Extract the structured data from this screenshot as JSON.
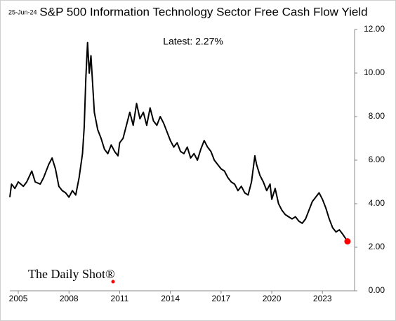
{
  "chart_data": {
    "type": "line",
    "date": "25-Jun-24",
    "title": "S&P 500 Information Technology Sector Free Cash Flow Yield",
    "annotation": "Latest:  2.27%",
    "watermark": "The Daily Shot®",
    "x": [
      2004.5,
      2004.6,
      2004.8,
      2005.0,
      2005.3,
      2005.5,
      2005.8,
      2006.0,
      2006.3,
      2006.5,
      2006.8,
      2007.0,
      2007.2,
      2007.4,
      2007.6,
      2007.8,
      2008.0,
      2008.2,
      2008.4,
      2008.6,
      2008.8,
      2008.9,
      2009.0,
      2009.1,
      2009.2,
      2009.3,
      2009.4,
      2009.5,
      2009.7,
      2009.9,
      2010.1,
      2010.3,
      2010.5,
      2010.7,
      2010.9,
      2011.0,
      2011.2,
      2011.4,
      2011.6,
      2011.8,
      2012.0,
      2012.2,
      2012.4,
      2012.6,
      2012.8,
      2013.0,
      2013.2,
      2013.4,
      2013.6,
      2013.8,
      2014.0,
      2014.2,
      2014.4,
      2014.6,
      2014.8,
      2015.0,
      2015.2,
      2015.4,
      2015.6,
      2015.8,
      2016.0,
      2016.2,
      2016.4,
      2016.6,
      2016.8,
      2017.0,
      2017.2,
      2017.4,
      2017.6,
      2017.8,
      2018.0,
      2018.2,
      2018.4,
      2018.6,
      2018.8,
      2019.0,
      2019.1,
      2019.3,
      2019.5,
      2019.7,
      2019.9,
      2020.0,
      2020.2,
      2020.4,
      2020.6,
      2020.8,
      2021.0,
      2021.2,
      2021.4,
      2021.6,
      2021.8,
      2022.0,
      2022.2,
      2022.4,
      2022.6,
      2022.8,
      2023.0,
      2023.2,
      2023.4,
      2023.6,
      2023.8,
      2024.0,
      2024.2,
      2024.48
    ],
    "series": [
      {
        "color": "#000000",
        "values": [
          4.3,
          4.9,
          4.7,
          5.0,
          4.8,
          5.0,
          5.5,
          5.0,
          4.9,
          5.2,
          5.8,
          6.1,
          5.6,
          4.8,
          4.6,
          4.5,
          4.3,
          4.6,
          4.4,
          5.2,
          6.3,
          7.5,
          9.8,
          11.4,
          10.0,
          10.8,
          9.5,
          8.2,
          7.4,
          7.0,
          6.5,
          6.3,
          6.7,
          6.4,
          6.2,
          6.8,
          7.0,
          7.6,
          8.2,
          7.6,
          8.6,
          7.9,
          8.2,
          7.6,
          8.4,
          7.8,
          7.6,
          8.0,
          7.7,
          7.3,
          6.9,
          6.6,
          6.8,
          6.4,
          6.3,
          6.6,
          6.1,
          6.3,
          6.0,
          6.5,
          6.9,
          6.6,
          6.4,
          6.0,
          5.8,
          5.6,
          5.5,
          5.2,
          5.0,
          4.9,
          4.6,
          4.8,
          4.5,
          4.4,
          5.0,
          6.2,
          5.8,
          5.3,
          5.0,
          4.6,
          4.9,
          4.2,
          4.7,
          4.0,
          3.7,
          3.5,
          3.4,
          3.3,
          3.4,
          3.2,
          3.1,
          3.3,
          3.7,
          4.1,
          4.3,
          4.5,
          4.2,
          3.8,
          3.3,
          2.9,
          2.7,
          2.8,
          2.6,
          2.27
        ]
      }
    ],
    "latest_color": "#ff0000",
    "xlim": [
      2004.5,
      2024.9
    ],
    "xticks": [
      2005,
      2008,
      2011,
      2014,
      2017,
      2020,
      2023
    ],
    "ylim": [
      0,
      12
    ],
    "yticks": [
      {
        "value": 0,
        "label": "0.00"
      },
      {
        "value": 2,
        "label": "2.00"
      },
      {
        "value": 4,
        "label": "4.00"
      },
      {
        "value": 6,
        "label": "6.00"
      },
      {
        "value": 8,
        "label": "8.00"
      },
      {
        "value": 10,
        "label": "10.00"
      },
      {
        "value": 12,
        "label": "12.00"
      }
    ]
  }
}
